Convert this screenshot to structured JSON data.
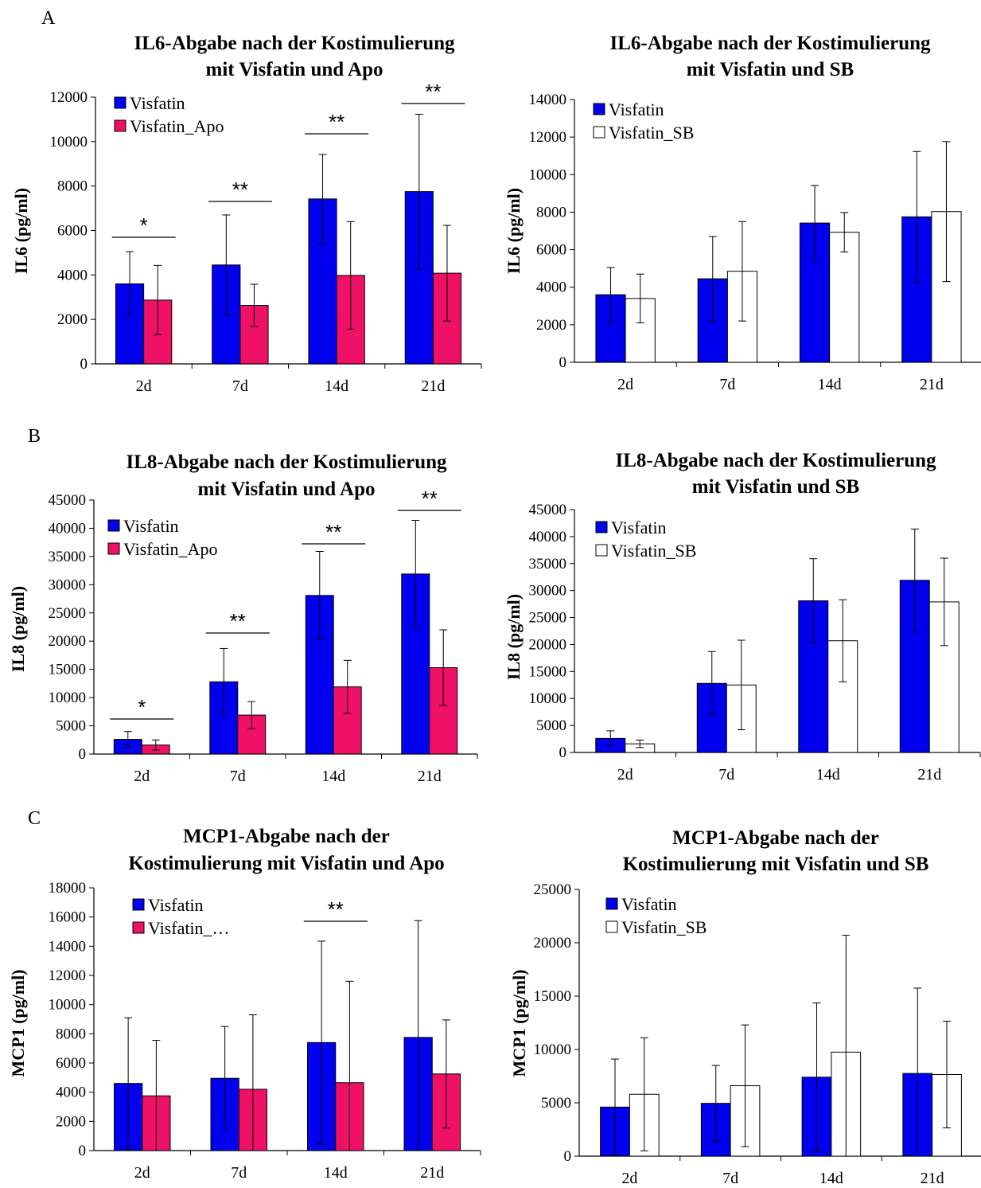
{
  "colors": {
    "visfatin": "#0000ee",
    "apo": "#ee1166",
    "sb": "#ffffff",
    "edge": "#000000"
  },
  "chart_data": [
    {
      "panel": "A",
      "type": "bar",
      "title": [
        "IL6-Abgabe nach der Kostimulierung",
        "mit Visfatin und Apo"
      ],
      "ylabel": "IL6 (pg/ml)",
      "ylim": [
        0,
        12000
      ],
      "ytick_step": 2000,
      "categories": [
        "2d",
        "7d",
        "14d",
        "21d"
      ],
      "series": [
        {
          "name": "Visfatin",
          "values": [
            3600,
            4450,
            7420,
            7750
          ],
          "errors": [
            1450,
            2250,
            2000,
            3480
          ]
        },
        {
          "name": "Visfatin_Apo",
          "values": [
            2870,
            2630,
            3980,
            4080
          ],
          "errors": [
            1560,
            950,
            2420,
            2150
          ]
        }
      ],
      "significance": [
        "*",
        "**",
        "**",
        "**"
      ]
    },
    {
      "panel": "",
      "type": "bar",
      "title": [
        "IL6-Abgabe nach der Kostimulierung",
        "mit Visfatin und SB"
      ],
      "ylabel": "IL6 (pg/ml)",
      "ylim": [
        0,
        14000
      ],
      "ytick_step": 2000,
      "categories": [
        "2d",
        "7d",
        "14d",
        "21d"
      ],
      "series": [
        {
          "name": "Visfatin",
          "values": [
            3600,
            4450,
            7420,
            7750
          ],
          "errors": [
            1450,
            2250,
            2000,
            3480
          ]
        },
        {
          "name": "Visfatin_SB",
          "values": [
            3400,
            4850,
            6930,
            8030
          ],
          "errors": [
            1300,
            2650,
            1050,
            3730
          ]
        }
      ],
      "significance": [
        "",
        "",
        "",
        ""
      ]
    },
    {
      "panel": "B",
      "type": "bar",
      "title": [
        "IL8-Abgabe nach der Kostimulierung",
        "mit Visfatin und Apo"
      ],
      "ylabel": "IL8  (pg/ml)",
      "ylim": [
        0,
        45000
      ],
      "ytick_step": 5000,
      "categories": [
        "2d",
        "7d",
        "14d",
        "21d"
      ],
      "series": [
        {
          "name": "Visfatin",
          "values": [
            2600,
            12800,
            28100,
            31900
          ],
          "errors": [
            1400,
            5900,
            7800,
            9500
          ]
        },
        {
          "name": "Visfatin_Apo",
          "values": [
            1600,
            6900,
            11900,
            15300
          ],
          "errors": [
            900,
            2400,
            4700,
            6700
          ]
        }
      ],
      "significance": [
        "*",
        "**",
        "**",
        "**"
      ]
    },
    {
      "panel": "",
      "type": "bar",
      "title": [
        "IL8-Abgabe nach der Kostimulierung",
        "mit Visfatin und SB"
      ],
      "ylabel": "IL8  (pg/ml)",
      "ylim": [
        0,
        45000
      ],
      "ytick_step": 5000,
      "categories": [
        "2d",
        "7d",
        "14d",
        "21d"
      ],
      "series": [
        {
          "name": "Visfatin",
          "values": [
            2600,
            12800,
            28100,
            31900
          ],
          "errors": [
            1400,
            5900,
            7800,
            9500
          ]
        },
        {
          "name": "Visfatin_SB",
          "values": [
            1600,
            12500,
            20700,
            27900
          ],
          "errors": [
            700,
            8300,
            7600,
            8100
          ]
        }
      ],
      "significance": [
        "",
        "",
        "",
        ""
      ]
    },
    {
      "panel": "C",
      "type": "bar",
      "title": [
        "MCP1-Abgabe nach der",
        "Kostimulierung  mit Visfatin und Apo"
      ],
      "ylabel": "MCP1 (pg/ml)",
      "ylim": [
        0,
        18000
      ],
      "ytick_step": 2000,
      "categories": [
        "2d",
        "7d",
        "14d",
        "21d"
      ],
      "series": [
        {
          "name": "Visfatin",
          "values": [
            4600,
            4950,
            7400,
            7750
          ],
          "errors": [
            4500,
            3550,
            6950,
            8000
          ]
        },
        {
          "name": "Visfatin_…",
          "values": [
            3750,
            4200,
            4650,
            5250
          ],
          "errors": [
            3800,
            5100,
            6950,
            3700
          ]
        }
      ],
      "significance": [
        "",
        "",
        "**",
        ""
      ]
    },
    {
      "panel": "",
      "type": "bar",
      "title": [
        "MCP1-Abgabe nach der",
        "Kostimulierung  mit Visfatin und SB"
      ],
      "ylabel": "MCP1 (pg/ml)",
      "ylim": [
        0,
        25000
      ],
      "ytick_step": 5000,
      "categories": [
        "2d",
        "7d",
        "14d",
        "21d"
      ],
      "series": [
        {
          "name": "Visfatin",
          "values": [
            4600,
            4950,
            7400,
            7750
          ],
          "errors": [
            4500,
            3550,
            6950,
            8000
          ]
        },
        {
          "name": "Visfatin_SB",
          "values": [
            5800,
            6600,
            9750,
            7650
          ],
          "errors": [
            5300,
            5700,
            10950,
            5000
          ]
        }
      ],
      "significance": [
        "",
        "",
        "",
        ""
      ]
    }
  ]
}
